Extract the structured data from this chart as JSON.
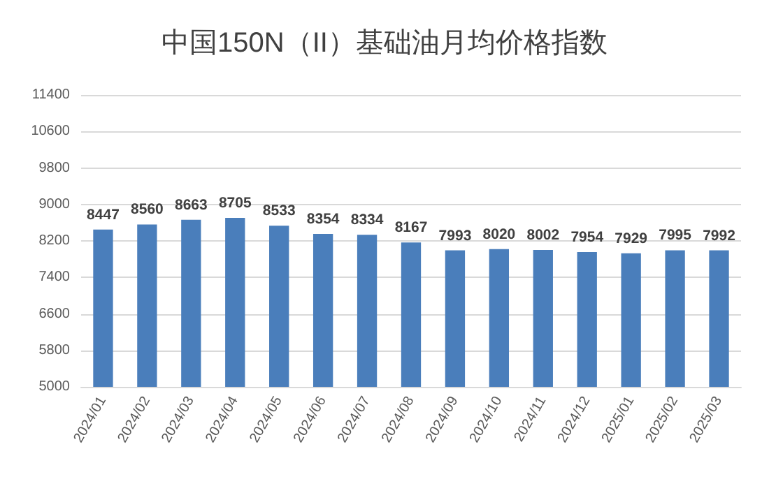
{
  "chart_data": {
    "type": "bar",
    "title": "中国150N（II）基础油月均价格指数",
    "categories": [
      "2024/01",
      "2024/02",
      "2024/03",
      "2024/04",
      "2024/05",
      "2024/06",
      "2024/07",
      "2024/08",
      "2024/09",
      "2024/10",
      "2024/11",
      "2024/12",
      "2025/01",
      "2025/02",
      "2025/03"
    ],
    "values": [
      8447,
      8560,
      8663,
      8705,
      8533,
      8354,
      8334,
      8167,
      7993,
      8020,
      8002,
      7954,
      7929,
      7995,
      7992
    ],
    "color": "#4a7ebb",
    "ylim": [
      5000,
      11400
    ],
    "yticks": [
      5000,
      5800,
      6600,
      7400,
      8200,
      9000,
      9800,
      10600,
      11400
    ],
    "grid": "y",
    "data_labels": true
  }
}
